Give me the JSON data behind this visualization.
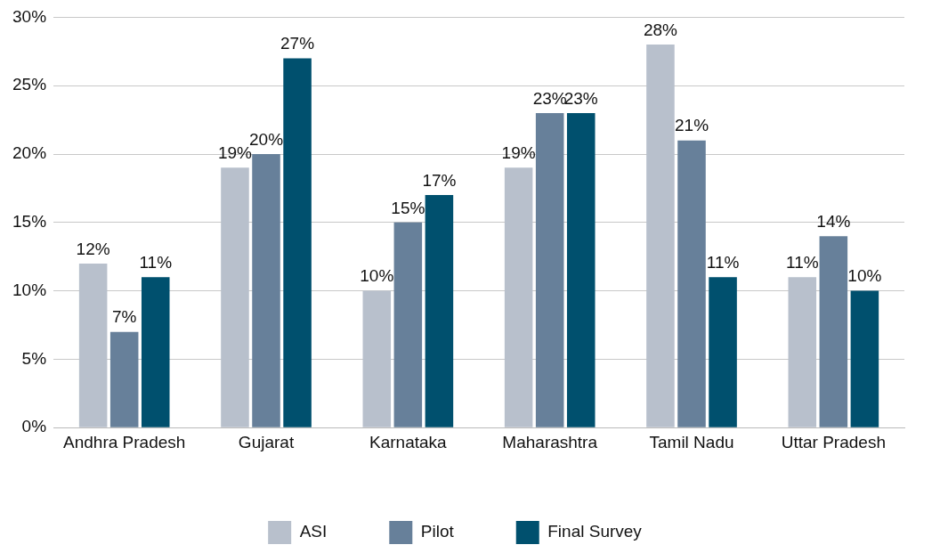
{
  "chart_data": {
    "type": "bar",
    "categories": [
      "Andhra Pradesh",
      "Gujarat",
      "Karnataka",
      "Maharashtra",
      "Tamil Nadu",
      "Uttar Pradesh"
    ],
    "series": [
      {
        "name": "ASI",
        "color": "#b8c0cc",
        "values": [
          12,
          19,
          10,
          19,
          28,
          11
        ],
        "value_labels": [
          "12%",
          "19%",
          "10%",
          "19%",
          "28%",
          "11%"
        ]
      },
      {
        "name": "Pilot",
        "color": "#67809a",
        "values": [
          7,
          20,
          15,
          23,
          21,
          14
        ],
        "value_labels": [
          "7%",
          "20%",
          "15%",
          "23%",
          "21%",
          "14%"
        ]
      },
      {
        "name": "Final Survey",
        "color": "#00506e",
        "values": [
          11,
          27,
          17,
          23,
          11,
          10
        ],
        "value_labels": [
          "11%",
          "27%",
          "17%",
          "23%",
          "11%",
          "10%"
        ]
      }
    ],
    "ylim": [
      0,
      30
    ],
    "yticks": [
      {
        "value": 0,
        "label": "0%"
      },
      {
        "value": 5,
        "label": "5%"
      },
      {
        "value": 10,
        "label": "10%"
      },
      {
        "value": 15,
        "label": "15%"
      },
      {
        "value": 20,
        "label": "20%"
      },
      {
        "value": 25,
        "label": "25%"
      },
      {
        "value": 30,
        "label": "30%"
      }
    ],
    "grid": "y",
    "legend": "bottom"
  }
}
